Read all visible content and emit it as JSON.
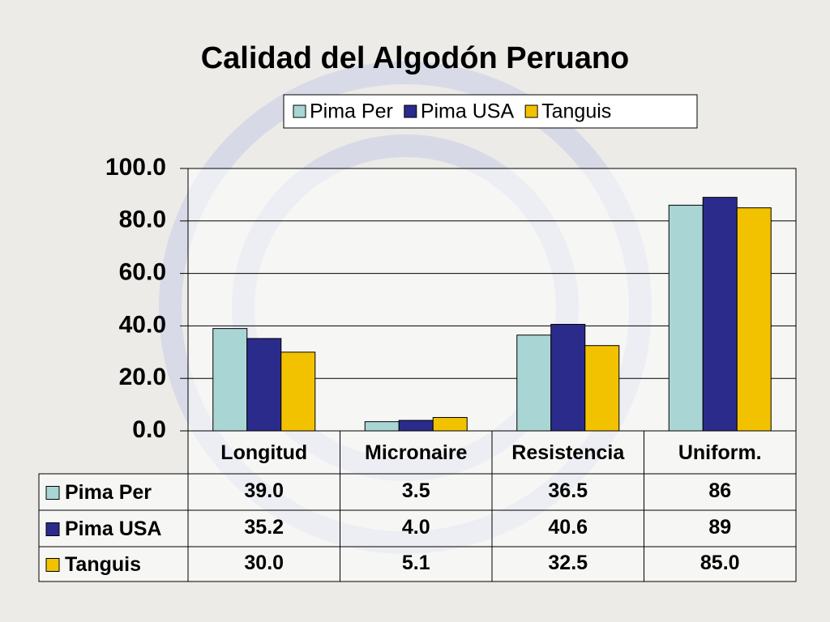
{
  "chart_data": {
    "type": "bar",
    "title": "Calidad del Algodón Peruano",
    "categories": [
      "Longitud",
      "Micronaire",
      "Resistencia",
      "Uniform."
    ],
    "series": [
      {
        "name": "Pima Per",
        "color": "#a9d6d4",
        "values": [
          39.0,
          3.5,
          36.5,
          86
        ],
        "value_labels": [
          "39.0",
          "3.5",
          "36.5",
          "86"
        ]
      },
      {
        "name": "Pima USA",
        "color": "#2b2b8c",
        "values": [
          35.2,
          4.0,
          40.6,
          89
        ],
        "value_labels": [
          "35.2",
          "4.0",
          "40.6",
          "89"
        ]
      },
      {
        "name": "Tanguis",
        "color": "#f2c200",
        "values": [
          30.0,
          5.1,
          32.5,
          85.0
        ],
        "value_labels": [
          "30.0",
          "5.1",
          "32.5",
          "85.0"
        ]
      }
    ],
    "ylim": [
      0,
      100
    ],
    "yticks": [
      {
        "value": 0,
        "label": "0.0"
      },
      {
        "value": 20,
        "label": "20.0"
      },
      {
        "value": 40,
        "label": "40.0"
      },
      {
        "value": 60,
        "label": "60.0"
      },
      {
        "value": 80,
        "label": "80.0"
      },
      {
        "value": 100,
        "label": "100.0"
      }
    ],
    "grid": true,
    "legend": "top"
  }
}
